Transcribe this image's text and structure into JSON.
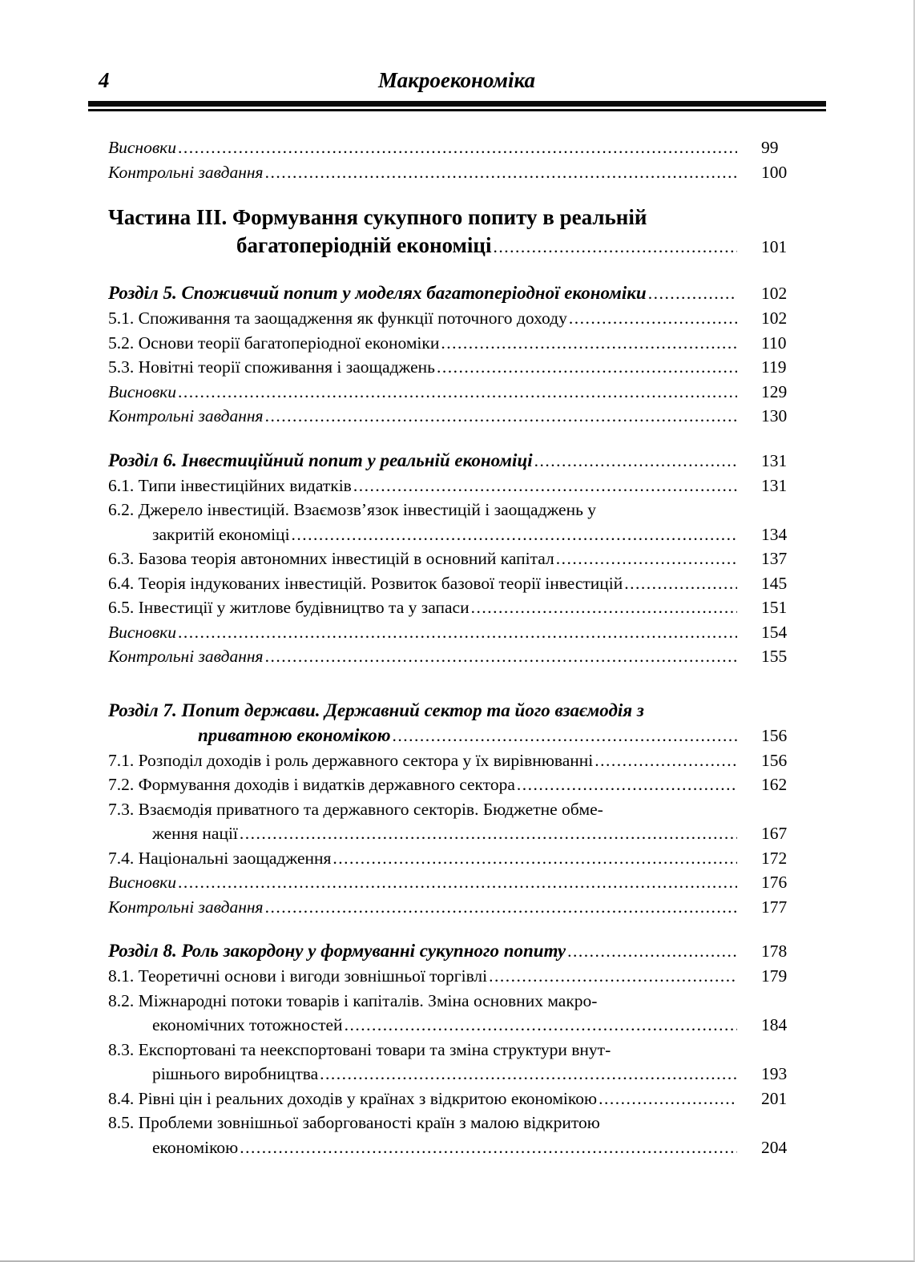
{
  "colors": {
    "paper": "#ffffff",
    "ink": "#000000",
    "rule": "#0b0b0b"
  },
  "header": {
    "page_number": "4",
    "book_title": "Макроекономіка"
  },
  "toc": {
    "rows": [
      {
        "style": "italic",
        "text": "Висновки",
        "page": "99",
        "dots": true,
        "indent": 0,
        "gap": 0
      },
      {
        "style": "italic",
        "text": "Контрольні завдання",
        "page": "100",
        "dots": true,
        "indent": 0,
        "gap": 0
      },
      {
        "style": "bold",
        "text": "Частина III. Формування сукупного попиту в реальній",
        "page": "",
        "dots": false,
        "indent": 0,
        "gap": 1
      },
      {
        "style": "bold",
        "text": "багатоперіодній економіці",
        "page": "101",
        "dots": true,
        "indent": 160,
        "gap": 0
      },
      {
        "style": "bolditalic",
        "text": "Розділ 5. Споживчий попит у моделях багатоперіодної економіки",
        "page": "102",
        "dots": true,
        "indent": 0,
        "gap": 1
      },
      {
        "style": "plain",
        "text": "5.1. Споживання та заощадження як функції поточного доходу",
        "page": "102",
        "dots": true,
        "indent": 0,
        "gap": 0
      },
      {
        "style": "plain",
        "text": "5.2. Основи теорії багатоперіодної економіки",
        "page": "110",
        "dots": true,
        "indent": 0,
        "gap": 0
      },
      {
        "style": "plain",
        "text": "5.3. Новітні теорії споживання і заощаджень",
        "page": "119",
        "dots": true,
        "indent": 0,
        "gap": 0
      },
      {
        "style": "italic",
        "text": "Висновки",
        "page": "129",
        "dots": true,
        "indent": 0,
        "gap": 0
      },
      {
        "style": "italic",
        "text": "Контрольні завдання",
        "page": "130",
        "dots": true,
        "indent": 0,
        "gap": 0
      },
      {
        "style": "bolditalic",
        "text": "Розділ 6. Інвестиційний попит у реальній економіці",
        "page": "131",
        "dots": true,
        "indent": 0,
        "gap": 1
      },
      {
        "style": "plain",
        "text": "6.1. Типи інвестиційних видатків",
        "page": "131",
        "dots": true,
        "indent": 0,
        "gap": 0
      },
      {
        "style": "plain",
        "text": "6.2. Джерело інвестицій. Взаємозв’язок інвестицій і заощаджень у",
        "page": "",
        "dots": false,
        "indent": 0,
        "gap": 0
      },
      {
        "style": "plain",
        "text": "закритій економіці",
        "page": "134",
        "dots": true,
        "indent": 55,
        "gap": 0
      },
      {
        "style": "plain",
        "text": "6.3. Базова теорія автономних інвестицій в основний капітал",
        "page": "137",
        "dots": true,
        "indent": 0,
        "gap": 0
      },
      {
        "style": "plain",
        "text": "6.4. Теорія індукованих інвестицій. Розвиток базової теорії інвестицій",
        "page": "145",
        "dots": true,
        "indent": 0,
        "gap": 0
      },
      {
        "style": "plain",
        "text": "6.5. Інвестиції у житлове будівництво та у запаси",
        "page": "151",
        "dots": true,
        "indent": 0,
        "gap": 0
      },
      {
        "style": "italic",
        "text": "Висновки",
        "page": "154",
        "dots": true,
        "indent": 0,
        "gap": 0
      },
      {
        "style": "italic",
        "text": "Контрольні завдання",
        "page": "155",
        "dots": true,
        "indent": 0,
        "gap": 0
      },
      {
        "style": "bolditalic",
        "text": "Розділ 7. Попит держави. Державний сектор та його взаємодія з",
        "page": "",
        "dots": false,
        "indent": 0,
        "gap": 2
      },
      {
        "style": "bolditalic",
        "text": "приватною економікою",
        "page": "156",
        "dots": true,
        "indent": 112,
        "gap": 0
      },
      {
        "style": "plain",
        "text": "7.1. Розподіл доходів і роль державного сектора у їх вирівнюванні",
        "page": "156",
        "dots": true,
        "indent": 0,
        "gap": 0
      },
      {
        "style": "plain",
        "text": "7.2. Формування доходів і видатків державного сектора",
        "page": "162",
        "dots": true,
        "indent": 0,
        "gap": 0
      },
      {
        "style": "plain",
        "text": "7.3. Взаємодія приватного та державного секторів. Бюджетне обме-",
        "page": "",
        "dots": false,
        "indent": 0,
        "gap": 0
      },
      {
        "style": "plain",
        "text": "ження нації",
        "page": "167",
        "dots": true,
        "indent": 55,
        "gap": 0
      },
      {
        "style": "plain",
        "text": "7.4. Національні заощадження",
        "page": "172",
        "dots": true,
        "indent": 0,
        "gap": 0
      },
      {
        "style": "italic",
        "text": "Висновки",
        "page": "176",
        "dots": true,
        "indent": 0,
        "gap": 0
      },
      {
        "style": "italic",
        "text": "Контрольні завдання",
        "page": "177",
        "dots": true,
        "indent": 0,
        "gap": 0
      },
      {
        "style": "bolditalic",
        "text": "Розділ 8. Роль закордону у формуванні сукупного попиту",
        "page": "178",
        "dots": true,
        "indent": 0,
        "gap": 1
      },
      {
        "style": "plain",
        "text": "8.1. Теоретичні основи і вигоди зовнішньої торгівлі",
        "page": "179",
        "dots": true,
        "indent": 0,
        "gap": 0
      },
      {
        "style": "plain",
        "text": "8.2. Міжнародні потоки товарів і капіталів. Зміна основних макро-",
        "page": "",
        "dots": false,
        "indent": 0,
        "gap": 0
      },
      {
        "style": "plain",
        "text": "економічних тотожностей",
        "page": "184",
        "dots": true,
        "indent": 55,
        "gap": 0
      },
      {
        "style": "plain",
        "text": "8.3. Експортовані та неекспортовані товари та зміна структури внут-",
        "page": "",
        "dots": false,
        "indent": 0,
        "gap": 0
      },
      {
        "style": "plain",
        "text": "рішнього виробництва",
        "page": "193",
        "dots": true,
        "indent": 55,
        "gap": 0
      },
      {
        "style": "plain",
        "text": "8.4. Рівні цін і реальних доходів у країнах з відкритою економікою",
        "page": "201",
        "dots": true,
        "indent": 0,
        "gap": 0
      },
      {
        "style": "plain",
        "text": "8.5. Проблеми зовнішньої заборгованості країн з малою відкритою",
        "page": "",
        "dots": false,
        "indent": 0,
        "gap": 0
      },
      {
        "style": "plain",
        "text": "економікою",
        "page": "204",
        "dots": true,
        "indent": 55,
        "gap": 0
      }
    ]
  }
}
